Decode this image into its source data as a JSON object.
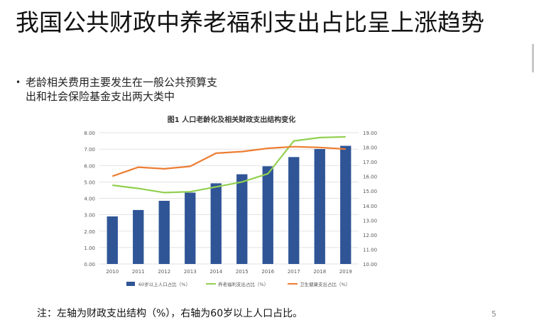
{
  "slide": {
    "title": "我国公共财政中养老福利支出占比呈上涨趋势",
    "bullet_lines": [
      "老龄相关费用主要发生在一般公共预算支",
      "出和社会保险基金支出两大类中"
    ],
    "note": "注：左轴为财政支出结构（%），右轴为60岁以上人口占比。",
    "page_number": "5"
  },
  "colors": {
    "bar": "#2f5597",
    "pension_line": "#92d050",
    "health_line": "#ed7d31",
    "grid": "#d9d9d9",
    "tick_text": "#595959"
  },
  "chart_data": {
    "type": "bar",
    "title": "图1 人口老龄化及相关财政支出结构变化",
    "categories": [
      "2010",
      "2011",
      "2012",
      "2013",
      "2014",
      "2015",
      "2016",
      "2017",
      "2018",
      "2019"
    ],
    "left_axis": {
      "ylim": [
        0,
        8
      ],
      "ticks": [
        "0.00",
        "1.00",
        "2.00",
        "3.00",
        "4.00",
        "5.00",
        "6.00",
        "7.00",
        "8.00"
      ]
    },
    "right_axis": {
      "ylim": [
        10,
        19
      ],
      "ticks": [
        "10.00",
        "11.00",
        "12.00",
        "13.00",
        "14.00",
        "15.00",
        "16.00",
        "17.00",
        "18.00",
        "19.00"
      ]
    },
    "grid": true,
    "legend_position": "bottom",
    "series": [
      {
        "name": "60岁以上人口占比（%）",
        "type": "bar",
        "axis": "right",
        "values": [
          13.26,
          13.7,
          14.33,
          14.89,
          15.53,
          16.15,
          16.7,
          17.33,
          17.88,
          18.1
        ]
      },
      {
        "name": "养老福利支出占比（%）",
        "type": "line",
        "axis": "left",
        "values": [
          4.8,
          4.6,
          4.35,
          4.4,
          4.7,
          5.0,
          5.5,
          7.5,
          7.7,
          7.75
        ]
      },
      {
        "name": "卫生健康支出占比（%）",
        "type": "line",
        "axis": "left",
        "values": [
          5.35,
          5.9,
          5.8,
          5.95,
          6.75,
          6.85,
          7.05,
          7.15,
          7.1,
          7.0
        ]
      }
    ]
  }
}
